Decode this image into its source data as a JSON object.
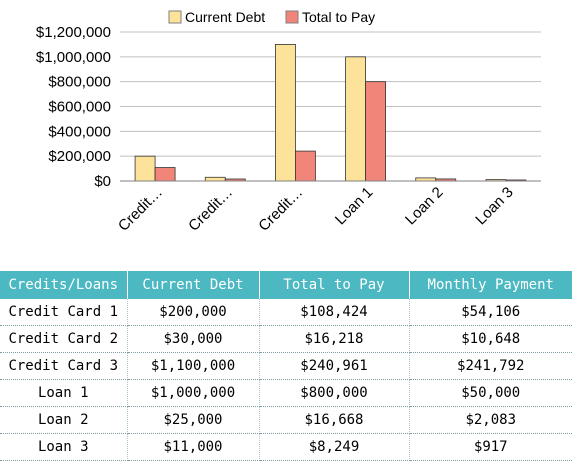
{
  "colors": {
    "current_debt": "#fde39a",
    "total_to_pay": "#f1857a",
    "table_header": "#4bb8c2",
    "gridline": "#c0c0c0"
  },
  "chart_data": {
    "type": "bar",
    "title": "",
    "xlabel": "",
    "ylabel": "",
    "categories": [
      "Credit…",
      "Credit…",
      "Credit…",
      "Loan 1",
      "Loan 2",
      "Loan 3"
    ],
    "series": [
      {
        "name": "Current Debt",
        "values": [
          200000,
          30000,
          1100000,
          1000000,
          25000,
          11000
        ]
      },
      {
        "name": "Total to Pay",
        "values": [
          108424,
          16218,
          240961,
          800000,
          16668,
          8249
        ]
      }
    ],
    "ylim": [
      0,
      1200000
    ],
    "yticks": [
      0,
      200000,
      400000,
      600000,
      800000,
      1000000,
      1200000
    ],
    "ytick_labels": [
      "$0",
      "$200,000",
      "$400,000",
      "$600,000",
      "$800,000",
      "$1,000,000",
      "$1,200,000"
    ],
    "grid": true,
    "legend": "top"
  },
  "table": {
    "headers": [
      "Credits/Loans",
      "Current Debt",
      "Total to Pay",
      "Monthly Payment"
    ],
    "rows": [
      [
        "Credit Card 1",
        "$200,000",
        "$108,424",
        "$54,106"
      ],
      [
        "Credit Card 2",
        "$30,000",
        "$16,218",
        "$10,648"
      ],
      [
        "Credit Card 3",
        "$1,100,000",
        "$240,961",
        "$241,792"
      ],
      [
        "Loan 1",
        "$1,000,000",
        "$800,000",
        "$50,000"
      ],
      [
        "Loan 2",
        "$25,000",
        "$16,668",
        "$2,083"
      ],
      [
        "Loan 3",
        "$11,000",
        "$8,249",
        "$917"
      ]
    ]
  }
}
